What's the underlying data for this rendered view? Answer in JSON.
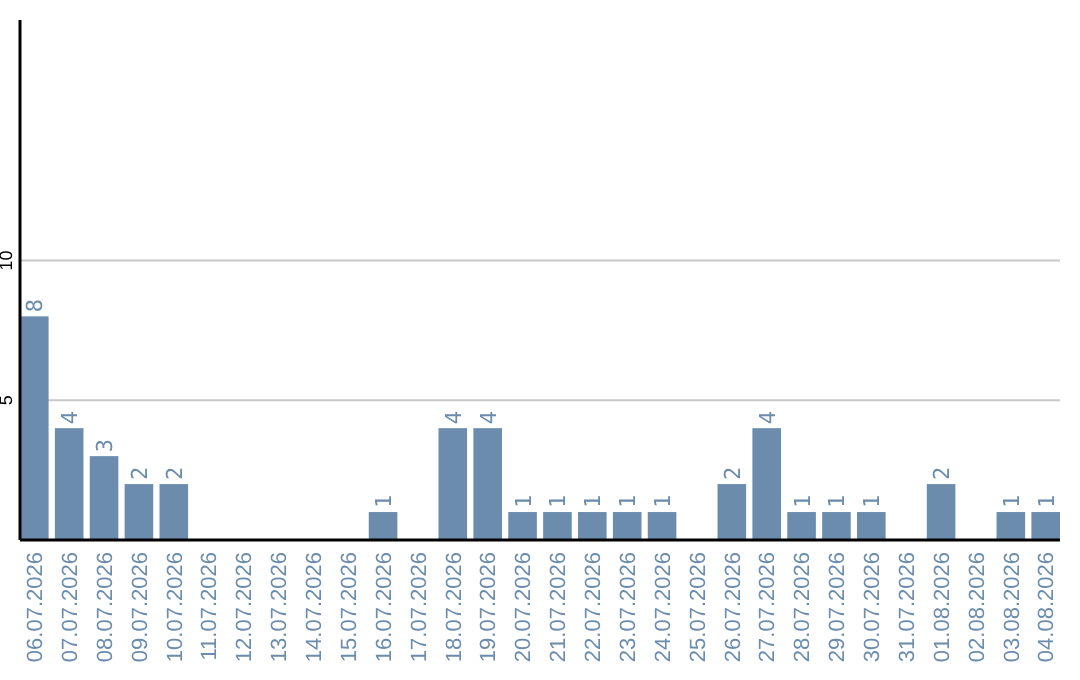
{
  "chart_data": {
    "type": "bar",
    "categories": [
      "06.07.2026",
      "07.07.2026",
      "08.07.2026",
      "09.07.2026",
      "10.07.2026",
      "11.07.2026",
      "12.07.2026",
      "13.07.2026",
      "14.07.2026",
      "15.07.2026",
      "16.07.2026",
      "17.07.2026",
      "18.07.2026",
      "19.07.2026",
      "20.07.2026",
      "21.07.2026",
      "22.07.2026",
      "23.07.2026",
      "24.07.2026",
      "25.07.2026",
      "26.07.2026",
      "27.07.2026",
      "28.07.2026",
      "29.07.2026",
      "30.07.2026",
      "31.07.2026",
      "01.08.2026",
      "02.08.2026",
      "03.08.2026",
      "04.08.2026"
    ],
    "values": [
      8,
      4,
      3,
      2,
      2,
      0,
      0,
      0,
      0,
      0,
      1,
      0,
      4,
      4,
      1,
      1,
      1,
      1,
      1,
      0,
      2,
      4,
      1,
      1,
      1,
      0,
      2,
      0,
      1,
      1
    ],
    "value_labels": [
      "8",
      "4",
      "3",
      "2",
      "2",
      null,
      null,
      null,
      null,
      null,
      "1",
      null,
      "4",
      "4",
      "1",
      "1",
      "1",
      "1",
      "1",
      null,
      "2",
      "4",
      "1",
      "1",
      "1",
      null,
      "2",
      null,
      "1",
      "1"
    ],
    "color": "#6b8cad",
    "ylim": [
      0,
      18.6
    ],
    "yticks": [
      5,
      10
    ],
    "grid": "y"
  }
}
